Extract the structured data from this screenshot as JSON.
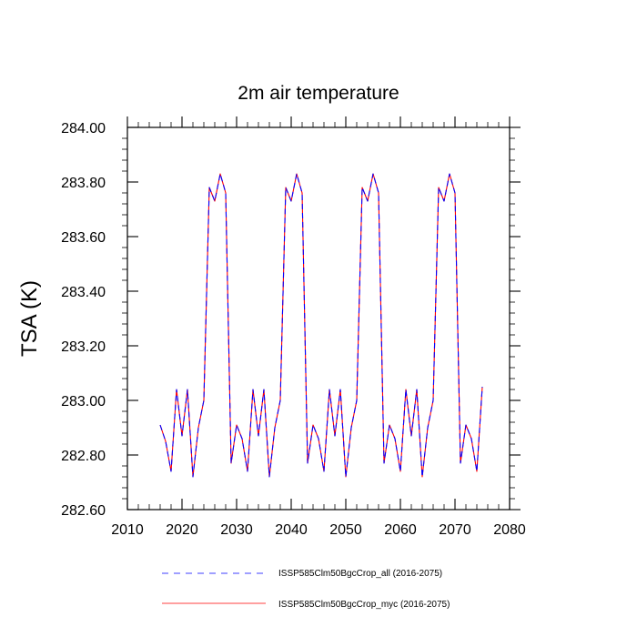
{
  "chart_data": {
    "type": "line",
    "title": "2m air temperature",
    "xlabel": "",
    "ylabel": "TSA  (K)",
    "xlim": [
      2010,
      2080
    ],
    "ylim": [
      282.6,
      284.0
    ],
    "x_ticks": [
      2010,
      2020,
      2030,
      2040,
      2050,
      2060,
      2070,
      2080
    ],
    "y_ticks": [
      282.6,
      282.8,
      283.0,
      283.2,
      283.4,
      283.6,
      283.8,
      284.0
    ],
    "x_tick_labels": [
      "2010",
      "2020",
      "2030",
      "2040",
      "2050",
      "2060",
      "2070",
      "2080"
    ],
    "y_tick_labels": [
      "282.60",
      "282.80",
      "283.00",
      "283.20",
      "283.40",
      "283.60",
      "283.80",
      "284.00"
    ],
    "grid": false,
    "legend_position": "bottom",
    "x": [
      2016,
      2017,
      2018,
      2019,
      2020,
      2021,
      2022,
      2023,
      2024,
      2025,
      2026,
      2027,
      2028,
      2029,
      2030,
      2031,
      2032,
      2033,
      2034,
      2035,
      2036,
      2037,
      2038,
      2039,
      2040,
      2041,
      2042,
      2043,
      2044,
      2045,
      2046,
      2047,
      2048,
      2049,
      2050,
      2051,
      2052,
      2053,
      2054,
      2055,
      2056,
      2057,
      2058,
      2059,
      2060,
      2061,
      2062,
      2063,
      2064,
      2065,
      2066,
      2067,
      2068,
      2069,
      2070,
      2071,
      2072,
      2073,
      2074,
      2075
    ],
    "series": [
      {
        "name": "ISSP585Clm50BgcCrop_all (2016-2075)",
        "color": "#0000ff",
        "dash": "dashed",
        "values": [
          282.91,
          282.85,
          282.74,
          283.04,
          282.87,
          283.04,
          282.72,
          282.9,
          283.0,
          283.78,
          283.73,
          283.83,
          283.76,
          282.77,
          282.91,
          282.86,
          282.74,
          283.04,
          282.87,
          283.04,
          282.72,
          282.9,
          283.0,
          283.78,
          283.73,
          283.83,
          283.76,
          282.77,
          282.91,
          282.86,
          282.74,
          283.04,
          282.87,
          283.04,
          282.72,
          282.9,
          283.0,
          283.78,
          283.73,
          283.83,
          283.76,
          282.77,
          282.91,
          282.86,
          282.74,
          283.04,
          282.87,
          283.04,
          282.72,
          282.9,
          283.0,
          283.78,
          283.73,
          283.83,
          283.76,
          282.77,
          282.91,
          282.86,
          282.74,
          283.05
        ]
      },
      {
        "name": "ISSP585Clm50BgcCrop_myc (2016-2075)",
        "color": "#ff0000",
        "dash": "solid",
        "values": [
          282.91,
          282.85,
          282.74,
          283.04,
          282.87,
          283.04,
          282.72,
          282.9,
          283.0,
          283.78,
          283.73,
          283.83,
          283.76,
          282.77,
          282.91,
          282.86,
          282.74,
          283.04,
          282.87,
          283.04,
          282.72,
          282.9,
          283.0,
          283.78,
          283.73,
          283.83,
          283.76,
          282.77,
          282.91,
          282.86,
          282.74,
          283.04,
          282.87,
          283.04,
          282.72,
          282.9,
          283.0,
          283.78,
          283.73,
          283.83,
          283.76,
          282.77,
          282.91,
          282.86,
          282.74,
          283.04,
          282.87,
          283.04,
          282.72,
          282.9,
          283.0,
          283.78,
          283.73,
          283.83,
          283.76,
          282.77,
          282.91,
          282.86,
          282.74,
          283.05
        ]
      }
    ]
  }
}
